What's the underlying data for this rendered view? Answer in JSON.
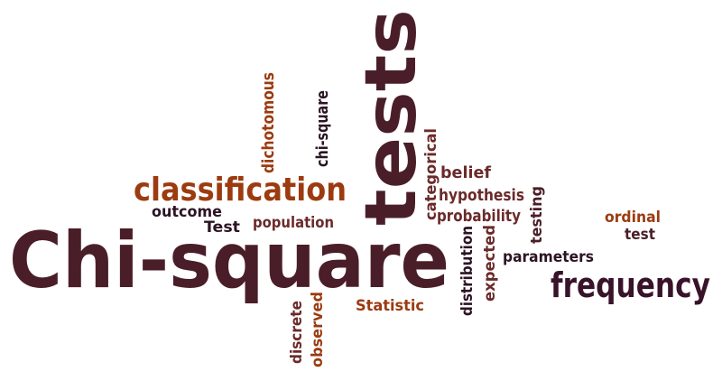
{
  "words": [
    {
      "text": "Chi-square",
      "color": "#4a1e28"
    },
    {
      "text": "tests",
      "color": "#4a1e28"
    },
    {
      "text": "classification",
      "color": "#9c3b10"
    },
    {
      "text": "frequency",
      "color": "#38132a"
    },
    {
      "text": "dichotomous",
      "color": "#9c3b10"
    },
    {
      "text": "chi-square",
      "color": "#2c1424"
    },
    {
      "text": "categorical",
      "color": "#6b2a2a"
    },
    {
      "text": "belief",
      "color": "#6b2a2a"
    },
    {
      "text": "hypothesis",
      "color": "#6b2a2a"
    },
    {
      "text": "probability",
      "color": "#6b2a2a"
    },
    {
      "text": "testing",
      "color": "#4a1e28"
    },
    {
      "text": "outcome",
      "color": "#2c1424"
    },
    {
      "text": "Test",
      "color": "#2c1424"
    },
    {
      "text": "population",
      "color": "#6b2a2a"
    },
    {
      "text": "ordinal",
      "color": "#9c3b10"
    },
    {
      "text": "test",
      "color": "#4a1e28"
    },
    {
      "text": "parameters",
      "color": "#2c1424"
    },
    {
      "text": "expected",
      "color": "#6b2a2a"
    },
    {
      "text": "distribution",
      "color": "#2c1424"
    },
    {
      "text": "Statistic",
      "color": "#9c3b10"
    },
    {
      "text": "discrete",
      "color": "#6b2a2a"
    },
    {
      "text": "observed",
      "color": "#9c3b10"
    }
  ]
}
